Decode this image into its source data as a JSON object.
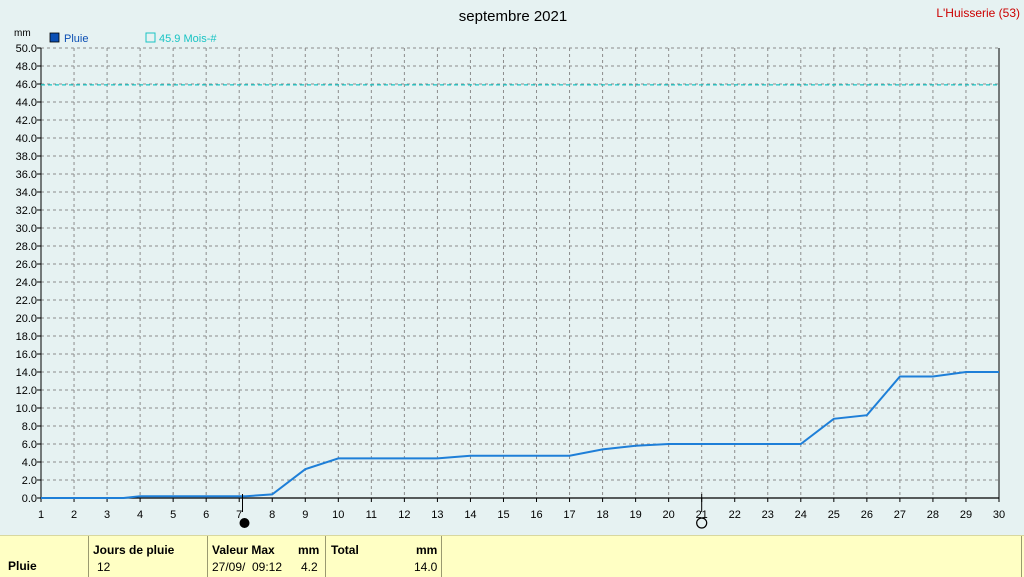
{
  "header": {
    "title": "septembre 2021",
    "station": "L'Huisserie (53)",
    "unit": "mm"
  },
  "legend": {
    "series_label": "Pluie",
    "reference_label": "45.9 Mois-#"
  },
  "colors": {
    "background": "#e6f2f2",
    "series": "#1e7fd8",
    "reference": "#19c4c4",
    "grid": "#8c8c8c",
    "station": "#cc0000",
    "stats_bg": "#ffffc4"
  },
  "chart_data": {
    "type": "line",
    "title": "septembre 2021",
    "ylabel": "mm",
    "xlim": [
      1,
      30
    ],
    "ylim": [
      0,
      50
    ],
    "y_ticks": [
      "0.0",
      "2.0",
      "4.0",
      "6.0",
      "8.0",
      "10.0",
      "12.0",
      "14.0",
      "16.0",
      "18.0",
      "20.0",
      "22.0",
      "24.0",
      "26.0",
      "28.0",
      "30.0",
      "32.0",
      "34.0",
      "36.0",
      "38.0",
      "40.0",
      "42.0",
      "44.0",
      "46.0",
      "48.0",
      "50.0"
    ],
    "x_ticks": [
      "1",
      "2",
      "3",
      "4",
      "5",
      "6",
      "7",
      "8",
      "9",
      "10",
      "11",
      "12",
      "13",
      "14",
      "15",
      "16",
      "17",
      "18",
      "19",
      "20",
      "21",
      "22",
      "23",
      "24",
      "25",
      "26",
      "27",
      "28",
      "29",
      "30"
    ],
    "grid": true,
    "legend_position": "top-left",
    "series": [
      {
        "name": "Pluie",
        "style": "solid",
        "points": [
          [
            1,
            0
          ],
          [
            3.5,
            0
          ],
          [
            4,
            0.2
          ],
          [
            7,
            0.2
          ],
          [
            7.2,
            0.2
          ],
          [
            8,
            0.4
          ],
          [
            9,
            3.2
          ],
          [
            10,
            4.4
          ],
          [
            13,
            4.4
          ],
          [
            14,
            4.7
          ],
          [
            17,
            4.7
          ],
          [
            18,
            5.4
          ],
          [
            19,
            5.8
          ],
          [
            20,
            6.0
          ],
          [
            24,
            6.0
          ],
          [
            25,
            8.8
          ],
          [
            26,
            9.2
          ],
          [
            27,
            13.5
          ],
          [
            28,
            13.5
          ],
          [
            29,
            14.0
          ],
          [
            30,
            14.0
          ]
        ]
      },
      {
        "name": "45.9 Mois-#",
        "style": "dashed",
        "points": [
          [
            1,
            45.9
          ],
          [
            30,
            45.9
          ]
        ]
      }
    ],
    "moon_phases": [
      {
        "day": 7.1,
        "phase": "new"
      },
      {
        "day": 21,
        "phase": "full"
      }
    ]
  },
  "stats": {
    "row_label": "Pluie",
    "jours_header": "Jours de pluie",
    "jours_value": "12",
    "max_header": "Valeur Max",
    "max_unit": "mm",
    "max_date": "27/09/",
    "max_time": "09:12",
    "max_value": "4.2",
    "total_header": "Total",
    "total_unit": "mm",
    "total_value": "14.0"
  }
}
